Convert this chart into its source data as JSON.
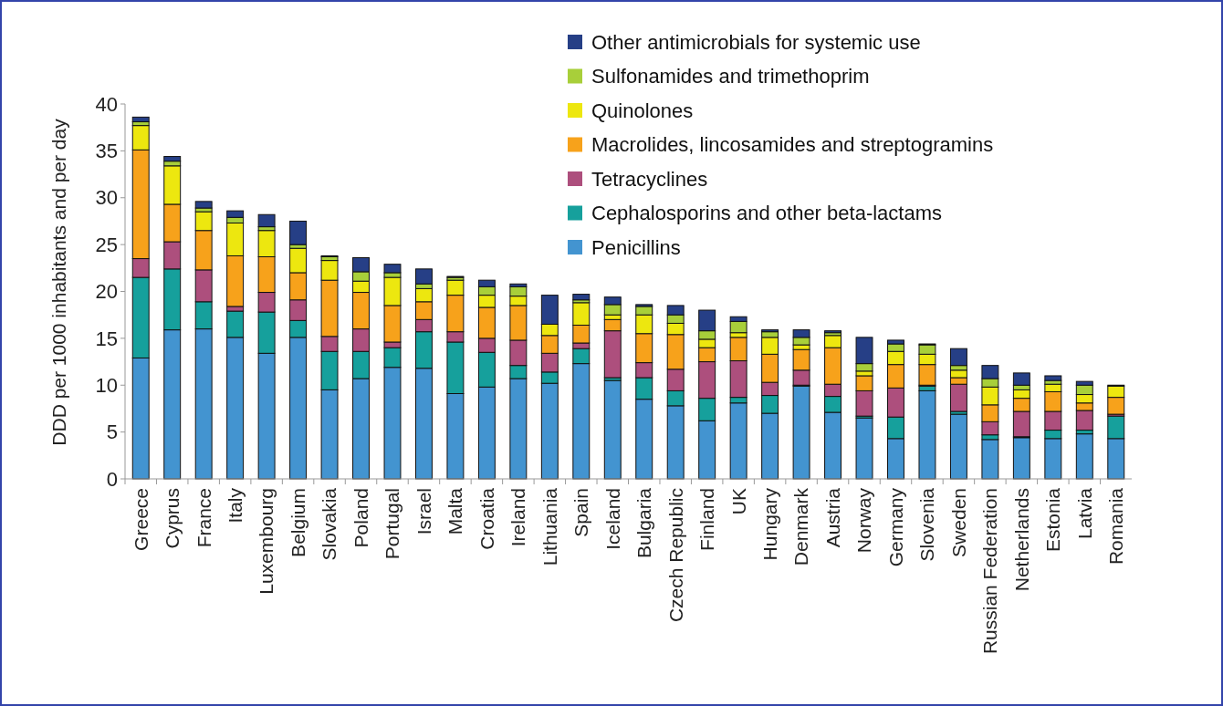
{
  "chart_data": {
    "type": "bar",
    "stacked": true,
    "ylabel": "DDD per 1000 inhabitants and per day",
    "ylim": [
      0,
      40
    ],
    "yticks": [
      0,
      5,
      10,
      15,
      20,
      25,
      30,
      35,
      40
    ],
    "grid": false,
    "legend": "top right",
    "categories": [
      "Greece",
      "Cyprus",
      "France",
      "Italy",
      "Luxembourg",
      "Belgium",
      "Slovakia",
      "Poland",
      "Portugal",
      "Israel",
      "Malta",
      "Croatia",
      "Ireland",
      "Lithuania",
      "Spain",
      "Iceland",
      "Bulgaria",
      "Czech Republic",
      "Finland",
      "UK",
      "Hungary",
      "Denmark",
      "Austria",
      "Norway",
      "Germany",
      "Slovenia",
      "Sweden",
      "Russian Federation",
      "Netherlands",
      "Estonia",
      "Latvia",
      "Romania"
    ],
    "series": [
      {
        "name": "Penicillins",
        "color": "#4394d0",
        "values": [
          12.9,
          15.9,
          16.0,
          15.1,
          13.4,
          15.1,
          9.5,
          10.7,
          11.9,
          11.8,
          9.1,
          9.8,
          10.7,
          10.2,
          12.3,
          10.5,
          8.5,
          7.8,
          6.2,
          8.1,
          7.0,
          9.9,
          7.1,
          6.5,
          4.3,
          9.4,
          6.9,
          4.2,
          4.4,
          4.3,
          4.8,
          4.3
        ]
      },
      {
        "name": "Cephalosporins and other beta-lactams",
        "color": "#16a09c",
        "values": [
          8.6,
          6.5,
          2.9,
          2.8,
          4.4,
          1.8,
          4.1,
          2.9,
          2.1,
          3.9,
          5.5,
          3.7,
          1.4,
          1.2,
          1.6,
          0.3,
          2.3,
          1.6,
          2.4,
          0.6,
          1.9,
          0.1,
          1.7,
          0.2,
          2.3,
          0.5,
          0.3,
          0.5,
          0.1,
          0.9,
          0.4,
          2.4
        ]
      },
      {
        "name": "Tetracyclines",
        "color": "#ad4f7d",
        "values": [
          2.0,
          2.9,
          3.4,
          0.5,
          2.1,
          2.2,
          1.6,
          2.4,
          0.6,
          1.3,
          1.1,
          1.5,
          2.7,
          2.0,
          0.6,
          5.0,
          1.6,
          2.3,
          3.9,
          3.9,
          1.4,
          1.6,
          1.3,
          2.7,
          3.1,
          0.1,
          2.9,
          1.4,
          2.7,
          2.0,
          2.1,
          0.2
        ]
      },
      {
        "name": "Macrolides, lincosamides and streptogramins",
        "color": "#f7a21b",
        "values": [
          11.6,
          4.0,
          4.2,
          5.4,
          3.8,
          2.9,
          6.0,
          3.9,
          3.9,
          1.9,
          3.9,
          3.3,
          3.7,
          1.9,
          1.9,
          1.2,
          3.1,
          3.7,
          1.5,
          2.5,
          3.0,
          2.2,
          3.9,
          1.6,
          2.5,
          2.2,
          0.7,
          1.8,
          1.4,
          2.1,
          0.8,
          1.8
        ]
      },
      {
        "name": "Quinolones",
        "color": "#ede70f",
        "values": [
          2.6,
          4.1,
          2.0,
          3.5,
          2.8,
          2.6,
          2.1,
          1.2,
          3.0,
          1.4,
          1.6,
          1.3,
          1.0,
          1.2,
          2.4,
          0.5,
          2.0,
          1.2,
          0.9,
          0.5,
          1.8,
          0.5,
          1.3,
          0.5,
          1.4,
          1.1,
          0.8,
          1.9,
          0.9,
          0.8,
          0.9,
          1.2
        ]
      },
      {
        "name": "Sulfonamides and trimethoprim",
        "color": "#a8cf3a",
        "values": [
          0.4,
          0.5,
          0.4,
          0.6,
          0.4,
          0.4,
          0.4,
          1.0,
          0.5,
          0.5,
          0.3,
          0.9,
          1.0,
          null,
          0.3,
          1.1,
          0.9,
          0.9,
          0.9,
          1.2,
          0.6,
          0.8,
          0.3,
          0.8,
          0.8,
          1.0,
          0.5,
          0.9,
          0.5,
          0.4,
          1.0,
          null
        ]
      },
      {
        "name": "Other antimicrobials for systemic use",
        "color": "#263f86",
        "values": [
          0.5,
          0.5,
          0.7,
          0.7,
          1.3,
          2.5,
          0.1,
          1.5,
          0.9,
          1.6,
          0.1,
          0.7,
          0.3,
          3.1,
          0.6,
          0.8,
          0.2,
          1.0,
          2.2,
          0.5,
          0.2,
          0.8,
          0.2,
          2.8,
          0.4,
          0.1,
          1.8,
          1.4,
          1.3,
          0.5,
          0.4,
          0.1
        ]
      }
    ]
  }
}
